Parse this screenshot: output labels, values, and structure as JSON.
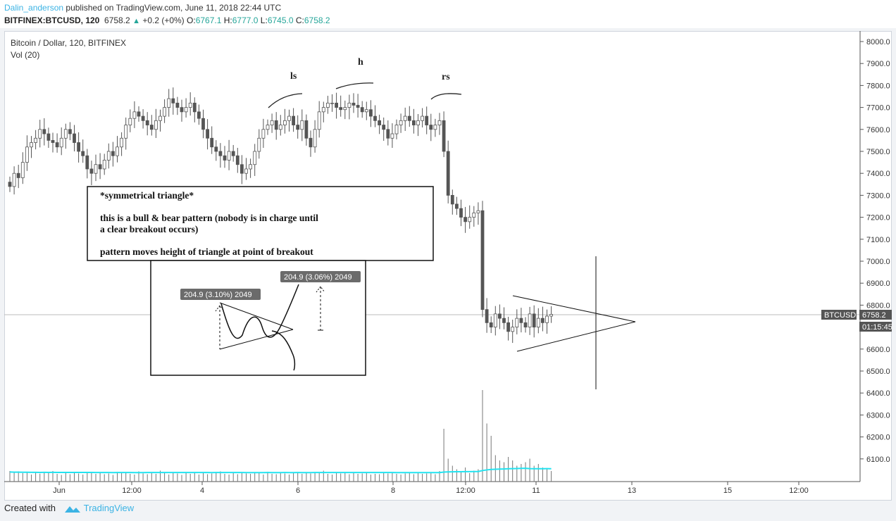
{
  "header": {
    "author": "Dalin_anderson",
    "published_text": "published on TradingView.com, June 11, 2018 22:44 UTC",
    "symbol": "BITFINEX:BTCUSD, 120",
    "last": "6758.2",
    "change": "+0.2 (+0%)",
    "open_label": "O:",
    "open": "6767.1",
    "high_label": "H:",
    "high": "6777.0",
    "low_label": "L:",
    "low": "6745.0",
    "close_label": "C:",
    "close": "6758.2"
  },
  "chart_title": "Bitcoin / Dollar, 120, BITFINEX",
  "volume_label": "Vol (20)",
  "price_axis": {
    "labels": [
      "8000.0",
      "7900.0",
      "7800.0",
      "7700.0",
      "7600.0",
      "7500.0",
      "7400.0",
      "7300.0",
      "7200.0",
      "7100.0",
      "7000.0",
      "6900.0",
      "6800.0",
      "6700.0",
      "6600.0",
      "6500.0",
      "6400.0",
      "6300.0",
      "6200.0",
      "6100.0"
    ],
    "symbol_tag": "BTCUSD",
    "price_tag": "6758.2",
    "countdown": "01:15:45"
  },
  "time_axis": [
    "Jun",
    "12:00",
    "4",
    "6",
    "8",
    "12:00",
    "11",
    "13",
    "15",
    "12:00"
  ],
  "annotations": {
    "ls": "ls",
    "h": "h",
    "rs": "rs",
    "box_title": "*symmetrical triangle*",
    "box_line1": "this is a bull & bear pattern (nobody is in charge until",
    "box_line2": "a clear breakout occurs)",
    "box_line3": "pattern moves height of triangle at point of breakout",
    "measure1": "204.9 (3.10%) 2049",
    "measure2": "204.9 (3.06%) 2049"
  },
  "footer": {
    "created_with": "Created with",
    "brand": "TradingView"
  },
  "chart_data": {
    "type": "candlestick",
    "ylim": [
      6010,
      8040
    ],
    "close_series": [
      7340,
      7400,
      7380,
      7450,
      7520,
      7540,
      7560,
      7600,
      7580,
      7550,
      7540,
      7520,
      7560,
      7600,
      7580,
      7540,
      7500,
      7480,
      7420,
      7400,
      7440,
      7420,
      7460,
      7500,
      7480,
      7520,
      7560,
      7620,
      7650,
      7680,
      7660,
      7640,
      7620,
      7600,
      7640,
      7660,
      7700,
      7740,
      7720,
      7700,
      7680,
      7700,
      7720,
      7680,
      7650,
      7600,
      7560,
      7520,
      7500,
      7480,
      7460,
      7500,
      7480,
      7440,
      7400,
      7420,
      7440,
      7500,
      7560,
      7600,
      7620,
      7640,
      7600,
      7620,
      7640,
      7660,
      7620,
      7600,
      7640,
      7560,
      7520,
      7600,
      7680,
      7700,
      7720,
      7720,
      7700,
      7690,
      7700,
      7720,
      7710,
      7700,
      7680,
      7690,
      7660,
      7640,
      7620,
      7600,
      7560,
      7580,
      7620,
      7640,
      7660,
      7640,
      7620,
      7640,
      7660,
      7620,
      7600,
      7620,
      7640,
      7500,
      7300,
      7260,
      7240,
      7200,
      7180,
      7200,
      7220,
      7230,
      6780,
      6720,
      6700,
      6760,
      6740,
      6720,
      6680,
      6700,
      6740,
      6720,
      6700,
      6760,
      6700,
      6740,
      6720,
      6750,
      6758.2
    ],
    "volume_series": [
      60,
      52,
      58,
      48,
      55,
      40,
      50,
      45,
      52,
      48,
      60,
      44,
      38,
      50,
      42,
      55,
      46,
      40,
      48,
      52,
      44,
      50,
      42,
      46,
      38,
      55,
      48,
      52,
      44,
      40,
      58,
      46,
      42,
      50,
      44,
      62,
      48,
      40,
      52,
      46,
      38,
      54,
      44,
      48,
      40,
      50,
      42,
      46,
      52,
      58,
      44,
      40,
      48,
      42,
      50,
      46,
      44,
      52,
      48,
      40,
      56,
      44,
      42,
      50,
      46,
      40,
      48,
      52,
      44,
      54,
      46,
      50,
      48,
      62,
      44,
      40,
      52,
      46,
      48,
      42,
      50,
      44,
      46,
      48,
      40,
      44,
      42,
      48,
      46,
      52,
      44,
      40,
      46,
      48,
      42,
      50,
      44,
      46,
      48,
      42,
      60,
      300,
      130,
      90,
      70,
      60,
      80,
      48,
      62,
      70,
      520,
      330,
      260,
      150,
      120,
      110,
      140,
      120,
      90,
      100,
      110,
      130,
      90,
      100,
      80,
      70,
      60
    ]
  }
}
